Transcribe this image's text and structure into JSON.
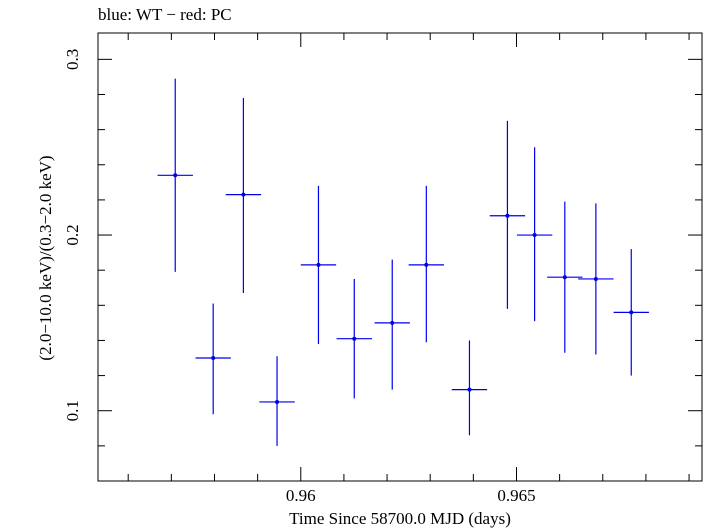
{
  "chart_data": {
    "type": "scatter",
    "title": "blue: WT − red: PC",
    "xlabel": "Time Since 58700.0 MJD (days)",
    "ylabel": "(2.0−10.0 keV)/(0.3−2.0 keV)",
    "xlim": [
      0.9553,
      0.9693
    ],
    "ylim": [
      0.06,
      0.315
    ],
    "x_ticks": [
      0.96,
      0.965
    ],
    "x_tick_labels": [
      "0.96",
      "0.965"
    ],
    "y_ticks": [
      0.1,
      0.2,
      0.3
    ],
    "y_tick_labels": [
      "0.1",
      "0.2",
      "0.3"
    ],
    "grid": false,
    "series": [
      {
        "color": "#0000ee",
        "points": [
          {
            "x": 0.95709,
            "y": 0.234,
            "xerr": 0.00041,
            "ylo": 0.179,
            "yhi": 0.289
          },
          {
            "x": 0.95797,
            "y": 0.13,
            "xerr": 0.00041,
            "ylo": 0.098,
            "yhi": 0.161
          },
          {
            "x": 0.95867,
            "y": 0.223,
            "xerr": 0.00041,
            "ylo": 0.167,
            "yhi": 0.278
          },
          {
            "x": 0.95945,
            "y": 0.105,
            "xerr": 0.00041,
            "ylo": 0.08,
            "yhi": 0.131
          },
          {
            "x": 0.96041,
            "y": 0.183,
            "xerr": 0.00041,
            "ylo": 0.138,
            "yhi": 0.228
          },
          {
            "x": 0.96124,
            "y": 0.141,
            "xerr": 0.00041,
            "ylo": 0.107,
            "yhi": 0.175
          },
          {
            "x": 0.96212,
            "y": 0.15,
            "xerr": 0.00041,
            "ylo": 0.112,
            "yhi": 0.186
          },
          {
            "x": 0.96291,
            "y": 0.183,
            "xerr": 0.00041,
            "ylo": 0.139,
            "yhi": 0.228
          },
          {
            "x": 0.96391,
            "y": 0.112,
            "xerr": 0.00041,
            "ylo": 0.086,
            "yhi": 0.14
          },
          {
            "x": 0.96479,
            "y": 0.211,
            "xerr": 0.00041,
            "ylo": 0.158,
            "yhi": 0.265
          },
          {
            "x": 0.96542,
            "y": 0.2,
            "xerr": 0.00041,
            "ylo": 0.151,
            "yhi": 0.25
          },
          {
            "x": 0.96612,
            "y": 0.176,
            "xerr": 0.00041,
            "ylo": 0.133,
            "yhi": 0.219
          },
          {
            "x": 0.96684,
            "y": 0.175,
            "xerr": 0.00041,
            "ylo": 0.132,
            "yhi": 0.218
          },
          {
            "x": 0.96766,
            "y": 0.156,
            "xerr": 0.00041,
            "ylo": 0.12,
            "yhi": 0.192
          }
        ]
      }
    ]
  }
}
